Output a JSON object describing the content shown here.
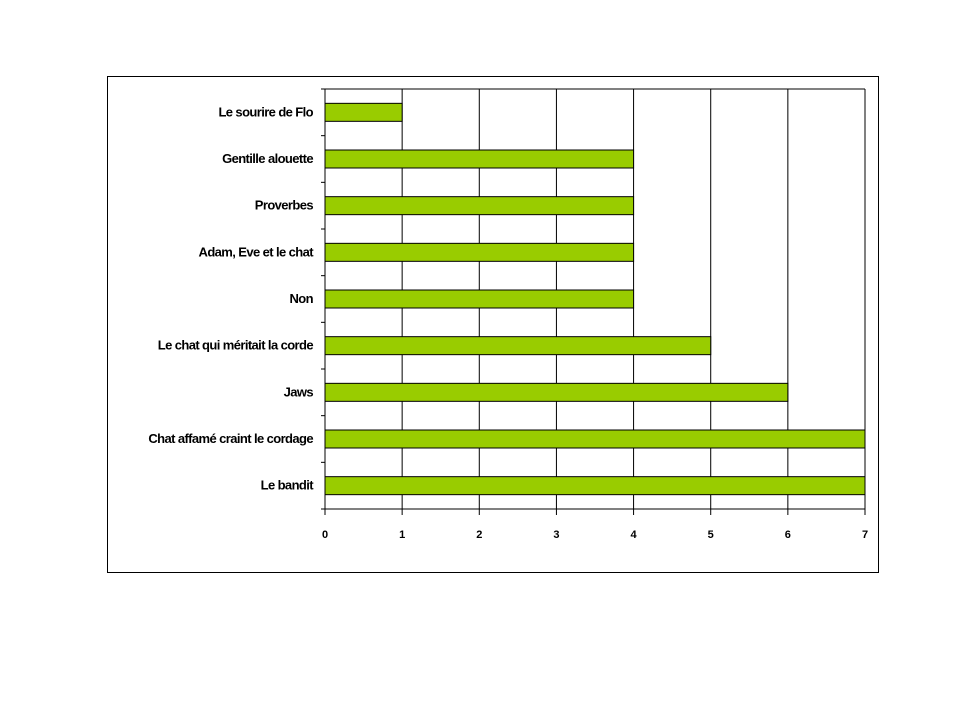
{
  "chart_data": {
    "type": "bar",
    "orientation": "horizontal",
    "categories": [
      "Le sourire de Flo",
      "Gentille alouette",
      "Proverbes",
      "Adam, Eve et le chat",
      "Non",
      "Le chat qui méritait la corde",
      "Jaws",
      "Chat affamé craint le cordage",
      "Le bandit"
    ],
    "values": [
      1,
      4,
      4,
      4,
      4,
      5,
      6,
      7,
      7
    ],
    "xlim": [
      0,
      7
    ],
    "xticks": [
      "0",
      "1",
      "2",
      "3",
      "4",
      "5",
      "6",
      "7"
    ],
    "grid": "vertical",
    "legend": "none",
    "colors": {
      "bar": "#99cc00",
      "bar_stroke": "#000000",
      "grid": "#000000"
    }
  }
}
